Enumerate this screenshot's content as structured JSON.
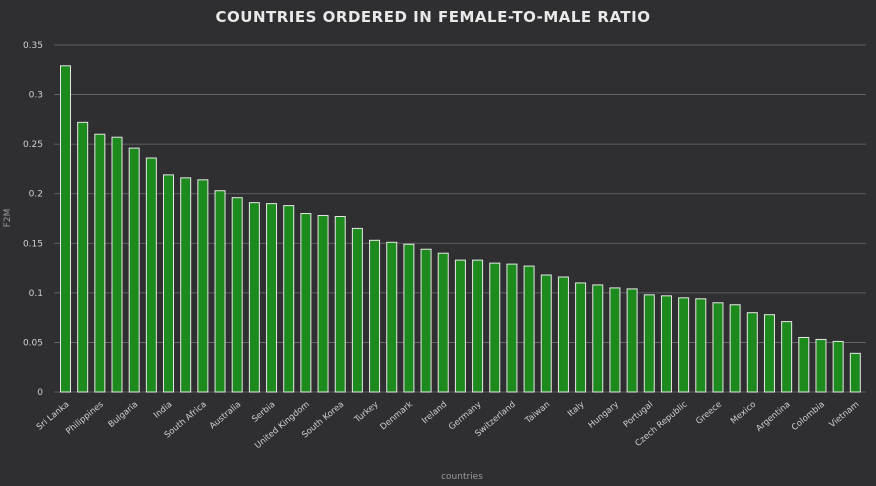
{
  "chart_data": {
    "type": "bar",
    "title": "COUNTRIES ORDERED IN FEMALE-TO-MALE RATIO",
    "xlabel": "countries",
    "ylabel": "F2M",
    "ylim": [
      0,
      0.35
    ],
    "yticks": [
      0,
      0.05,
      0.1,
      0.15,
      0.2,
      0.25,
      0.3,
      0.35
    ],
    "ytick_labels": [
      "0",
      "0.05",
      "0.1",
      "0.15",
      "0.2",
      "0.25",
      "0.3",
      "0.35"
    ],
    "grid": true,
    "colors": {
      "background": "#2f2f32",
      "bar_fill": "#1d8a1d",
      "bar_edge": "#e8e8e8",
      "grid": "#6d6d70"
    },
    "labeled_every": 2,
    "categories": [
      "Sri Lanka",
      "",
      "Philippines",
      "",
      "Bulgaria",
      "",
      "India",
      "",
      "South Africa",
      "",
      "Australia",
      "",
      "Serbia",
      "",
      "United Kingdom",
      "",
      "South Korea",
      "",
      "Turkey",
      "",
      "Denmark",
      "",
      "Ireland",
      "",
      "Germany",
      "",
      "Switzerland",
      "",
      "Taiwan",
      "",
      "Italy",
      "",
      "Hungary",
      "",
      "Portugal",
      "",
      "Czech Republic",
      "",
      "Greece",
      "",
      "Mexico",
      "",
      "Argentina",
      "",
      "Colombia",
      "",
      "Vietnam"
    ],
    "values": [
      0.329,
      0.272,
      0.26,
      0.257,
      0.246,
      0.236,
      0.219,
      0.216,
      0.214,
      0.203,
      0.196,
      0.191,
      0.19,
      0.188,
      0.18,
      0.178,
      0.177,
      0.165,
      0.153,
      0.151,
      0.149,
      0.144,
      0.14,
      0.133,
      0.133,
      0.13,
      0.129,
      0.127,
      0.118,
      0.116,
      0.11,
      0.108,
      0.105,
      0.104,
      0.098,
      0.097,
      0.095,
      0.094,
      0.09,
      0.088,
      0.08,
      0.078,
      0.071,
      0.055,
      0.053,
      0.051,
      0.039
    ]
  }
}
